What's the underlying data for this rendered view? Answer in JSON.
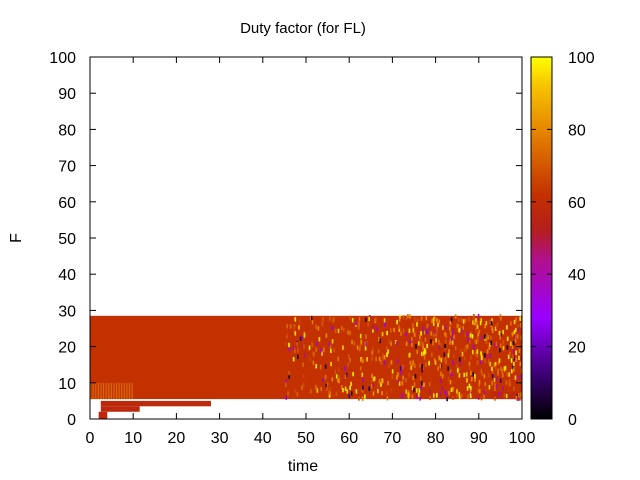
{
  "chart_data": {
    "type": "heatmap",
    "title": "Duty factor (for FL)",
    "xlabel": "time",
    "ylabel": "F",
    "xlim": [
      0,
      100
    ],
    "ylim": [
      0,
      100
    ],
    "x_ticks": [
      "0",
      "10",
      "20",
      "30",
      "40",
      "50",
      "60",
      "70",
      "80",
      "90",
      "100"
    ],
    "y_ticks": [
      "0",
      "10",
      "20",
      "30",
      "40",
      "50",
      "60",
      "70",
      "80",
      "90",
      "100"
    ],
    "colorbar": {
      "range": [
        0,
        100
      ],
      "ticks": [
        "0",
        "20",
        "40",
        "60",
        "80",
        "100"
      ],
      "palette": "black-purple-red-orange-yellow"
    },
    "regions": [
      {
        "name": "main-band",
        "x": [
          0,
          100
        ],
        "y": [
          5.5,
          28.5
        ],
        "value": 62
      },
      {
        "name": "lower-bar-long",
        "x": [
          2.5,
          28
        ],
        "y": [
          3.5,
          5
        ],
        "value": 58
      },
      {
        "name": "lower-bar-short",
        "x": [
          2.5,
          11.5
        ],
        "y": [
          2,
          3.5
        ],
        "value": 58
      },
      {
        "name": "lower-bar-small",
        "x": [
          2,
          4
        ],
        "y": [
          0,
          2
        ],
        "value": 58
      },
      {
        "name": "right-bar",
        "x": [
          93,
          100
        ],
        "y": [
          5.5,
          7.5
        ],
        "value": 58
      }
    ],
    "noisy_region": {
      "x": [
        45,
        100
      ],
      "y": [
        5.5,
        28.5
      ],
      "value_range": [
        0,
        100
      ]
    }
  }
}
